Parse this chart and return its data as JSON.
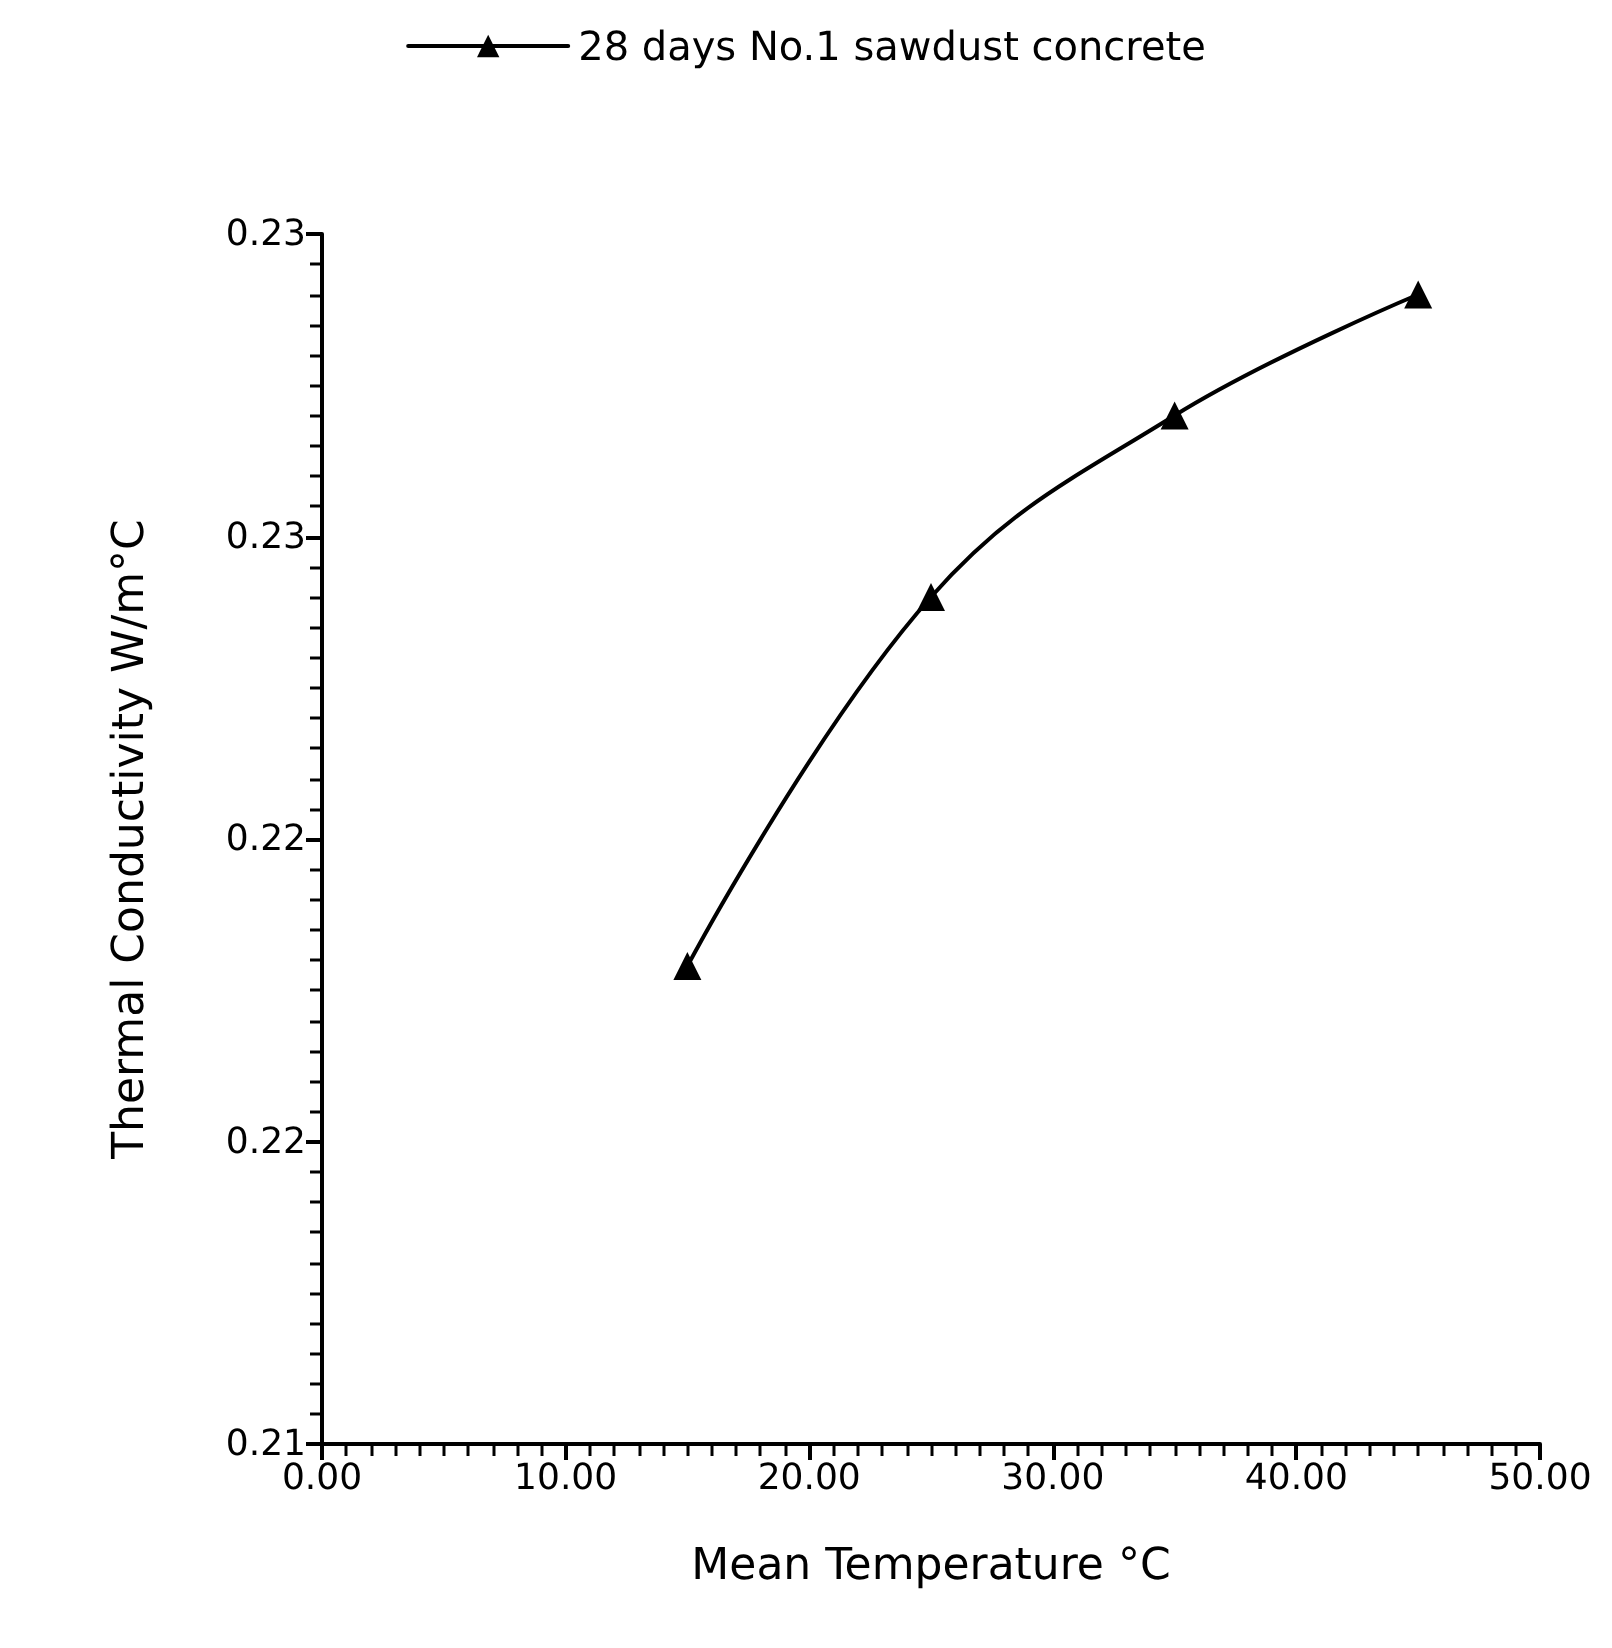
{
  "chart_data": {
    "type": "line",
    "xlabel": "Mean Temperature °C",
    "ylabel": "Thermal Conductivity W/m°C",
    "x": [
      15,
      25,
      35,
      45
    ],
    "series": [
      {
        "name": "28 days No.1 sawdust concrete",
        "color": "#000000",
        "values": [
          0.2179,
          0.224,
          0.227,
          0.229
        ]
      }
    ],
    "xlim": [
      0,
      50
    ],
    "xticks": [
      {
        "value": 0,
        "label": "0.00"
      },
      {
        "value": 10,
        "label": "10.00"
      },
      {
        "value": 20,
        "label": "20.00"
      },
      {
        "value": 30,
        "label": "30.00"
      },
      {
        "value": 40,
        "label": "40.00"
      },
      {
        "value": 50,
        "label": "50.00"
      }
    ],
    "ylim": [
      0.21,
      0.23
    ],
    "yticks": [
      {
        "value": 0.21,
        "label": "0.21"
      },
      {
        "value": 0.215,
        "label": "0.22"
      },
      {
        "value": 0.22,
        "label": "0.22"
      },
      {
        "value": 0.225,
        "label": "0.23"
      },
      {
        "value": 0.23,
        "label": "0.23"
      }
    ],
    "marker": "triangle",
    "line_style": "solid",
    "legend": "top",
    "grid": false
  }
}
